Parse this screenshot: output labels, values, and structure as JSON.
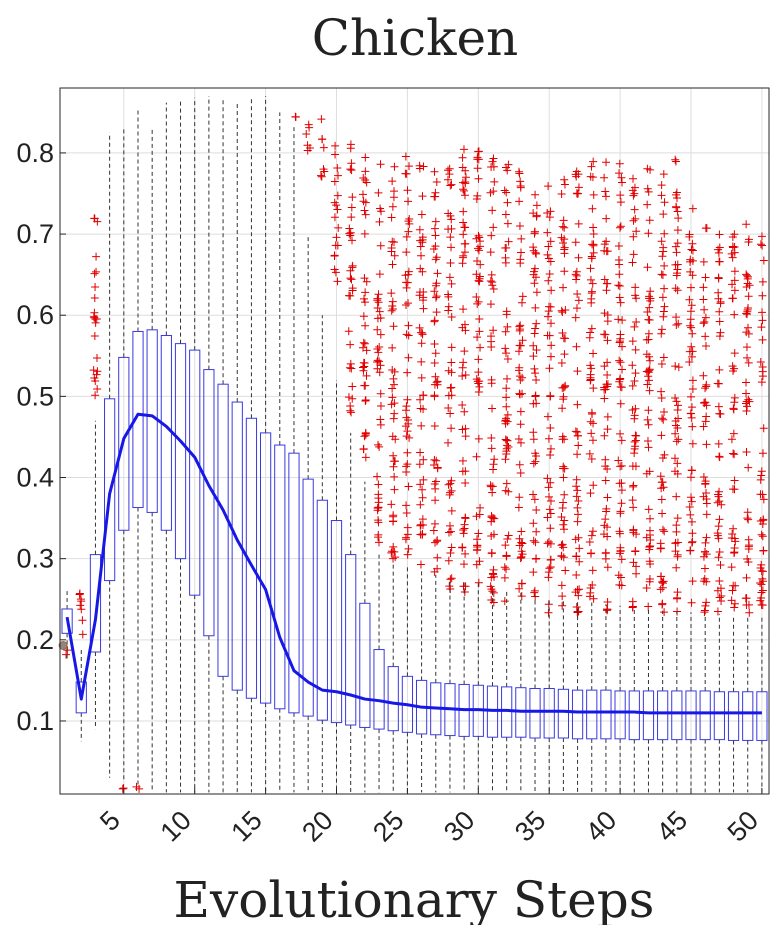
{
  "chart_data": {
    "type": "boxplot",
    "title": "Chicken",
    "xlabel": "Evolutionary Steps",
    "ylabel": "",
    "xlim": [
      0.5,
      50.5
    ],
    "ylim": [
      0.01,
      0.88
    ],
    "grid": true,
    "yticks": [
      0.1,
      0.2,
      0.3,
      0.4,
      0.5,
      0.6,
      0.7,
      0.8
    ],
    "ytick_labels": [
      "0.1",
      "0.2",
      "0.3",
      "0.4",
      "0.5",
      "0.6",
      "0.7",
      "0.8"
    ],
    "xticks": [
      5,
      10,
      15,
      20,
      25,
      30,
      35,
      40,
      45,
      50
    ],
    "xtick_labels": [
      "5",
      "10",
      "15",
      "20",
      "25",
      "30",
      "35",
      "40",
      "45",
      "50"
    ],
    "steps": [
      1,
      2,
      3,
      4,
      5,
      6,
      7,
      8,
      9,
      10,
      11,
      12,
      13,
      14,
      15,
      16,
      17,
      18,
      19,
      20,
      21,
      22,
      23,
      24,
      25,
      26,
      27,
      28,
      29,
      30,
      31,
      32,
      33,
      34,
      35,
      36,
      37,
      38,
      39,
      40,
      41,
      42,
      43,
      44,
      45,
      46,
      47,
      48,
      49,
      50
    ],
    "q1": [
      0.208,
      0.11,
      0.185,
      0.273,
      0.335,
      0.363,
      0.357,
      0.335,
      0.3,
      0.255,
      0.205,
      0.155,
      0.138,
      0.128,
      0.122,
      0.115,
      0.11,
      0.106,
      0.101,
      0.098,
      0.095,
      0.092,
      0.09,
      0.088,
      0.086,
      0.084,
      0.083,
      0.082,
      0.081,
      0.081,
      0.08,
      0.08,
      0.08,
      0.079,
      0.079,
      0.079,
      0.078,
      0.078,
      0.078,
      0.078,
      0.077,
      0.077,
      0.077,
      0.077,
      0.077,
      0.077,
      0.077,
      0.076,
      0.076,
      0.076
    ],
    "median": [
      0.228,
      0.127,
      0.225,
      0.38,
      0.448,
      0.478,
      0.476,
      0.463,
      0.445,
      0.425,
      0.39,
      0.36,
      0.323,
      0.292,
      0.262,
      0.203,
      0.162,
      0.148,
      0.138,
      0.136,
      0.132,
      0.127,
      0.125,
      0.122,
      0.12,
      0.117,
      0.116,
      0.115,
      0.114,
      0.114,
      0.113,
      0.113,
      0.112,
      0.112,
      0.112,
      0.112,
      0.111,
      0.111,
      0.111,
      0.111,
      0.111,
      0.11,
      0.11,
      0.11,
      0.11,
      0.11,
      0.11,
      0.11,
      0.11,
      0.11
    ],
    "q3": [
      0.238,
      0.148,
      0.305,
      0.497,
      0.548,
      0.58,
      0.582,
      0.575,
      0.565,
      0.557,
      0.533,
      0.515,
      0.493,
      0.473,
      0.455,
      0.44,
      0.43,
      0.398,
      0.372,
      0.347,
      0.305,
      0.245,
      0.188,
      0.167,
      0.155,
      0.15,
      0.147,
      0.146,
      0.145,
      0.144,
      0.143,
      0.142,
      0.141,
      0.14,
      0.14,
      0.139,
      0.138,
      0.138,
      0.138,
      0.137,
      0.137,
      0.137,
      0.137,
      0.137,
      0.137,
      0.137,
      0.136,
      0.136,
      0.136,
      0.136
    ],
    "whisker_low": [
      0.175,
      0.075,
      0.09,
      0.03,
      0.025,
      0.02,
      0.015,
      0.012,
      0.012,
      0.012,
      0.012,
      0.012,
      0.012,
      0.012,
      0.012,
      0.012,
      0.012,
      0.012,
      0.012,
      0.012,
      0.012,
      0.012,
      0.012,
      0.012,
      0.012,
      0.012,
      0.012,
      0.012,
      0.012,
      0.012,
      0.012,
      0.012,
      0.012,
      0.012,
      0.012,
      0.012,
      0.012,
      0.012,
      0.012,
      0.012,
      0.012,
      0.012,
      0.012,
      0.012,
      0.012,
      0.012,
      0.012,
      0.012,
      0.012,
      0.012
    ],
    "whisker_high": [
      0.26,
      0.19,
      0.47,
      0.825,
      0.83,
      0.855,
      0.83,
      0.862,
      0.866,
      0.868,
      0.87,
      0.866,
      0.862,
      0.868,
      0.87,
      0.85,
      0.835,
      0.7,
      0.6,
      0.52,
      0.455,
      0.395,
      0.305,
      0.295,
      0.29,
      0.285,
      0.28,
      0.275,
      0.272,
      0.27,
      0.265,
      0.26,
      0.258,
      0.255,
      0.252,
      0.25,
      0.248,
      0.246,
      0.244,
      0.242,
      0.24,
      0.238,
      0.236,
      0.235,
      0.234,
      0.233,
      0.232,
      0.231,
      0.23,
      0.23
    ],
    "outlier_range_low": [
      0.18,
      0.2,
      0.49,
      null,
      0.015,
      0.015,
      null,
      null,
      null,
      null,
      null,
      null,
      null,
      null,
      null,
      null,
      0.84,
      0.79,
      0.77,
      0.64,
      0.47,
      0.4,
      0.32,
      0.3,
      0.29,
      0.28,
      0.27,
      0.26,
      0.255,
      0.25,
      0.245,
      0.24,
      0.238,
      0.235,
      0.233,
      0.232,
      0.231,
      0.23,
      0.23,
      0.23,
      0.23,
      0.23,
      0.23,
      0.23,
      0.23,
      0.23,
      0.23,
      0.23,
      0.23,
      0.23
    ],
    "outlier_range_high": [
      0.195,
      0.285,
      0.73,
      null,
      0.02,
      0.02,
      null,
      null,
      null,
      null,
      null,
      null,
      null,
      null,
      null,
      null,
      0.845,
      0.85,
      0.85,
      0.84,
      0.82,
      0.81,
      0.805,
      0.8,
      0.8,
      0.795,
      0.79,
      0.785,
      0.815,
      0.81,
      0.8,
      0.79,
      0.78,
      0.77,
      0.76,
      0.79,
      0.78,
      0.8,
      0.79,
      0.795,
      0.78,
      0.81,
      0.78,
      0.81,
      0.74,
      0.72,
      0.71,
      0.7,
      0.72,
      0.7
    ],
    "outlier_color": "#e00000",
    "box_color": "#3a3ae0",
    "median_line_color": "#1818e6",
    "median_marker_color": "#888888"
  }
}
